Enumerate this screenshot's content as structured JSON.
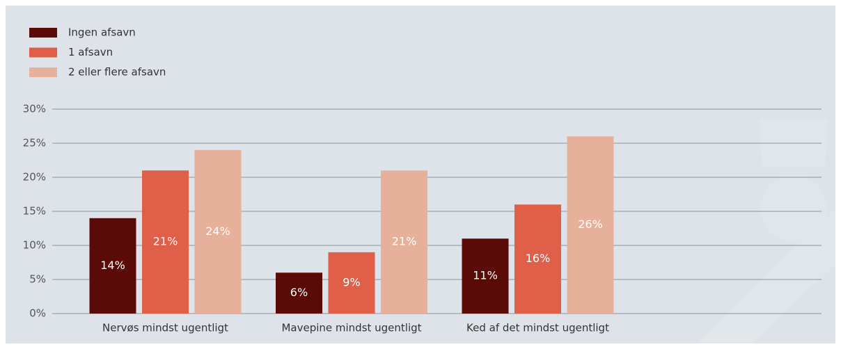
{
  "chart_data": {
    "type": "bar",
    "categories": [
      "Nervøs mindst ugentligt",
      "Mavepine mindst ugentligt",
      "Ked af det mindst ugentligt"
    ],
    "series": [
      {
        "name": "Ingen afsavn",
        "color": "#5a0a07",
        "values": [
          14,
          6,
          11
        ],
        "value_labels": [
          "14%",
          "6%",
          "11%"
        ]
      },
      {
        "name": "1 afsavn",
        "color": "#e05f48",
        "values": [
          21,
          9,
          16
        ],
        "value_labels": [
          "21%",
          "9%",
          "16%"
        ]
      },
      {
        "name": "2 eller flere afsavn",
        "color": "#e6b09b",
        "values": [
          24,
          21,
          26
        ],
        "value_labels": [
          "24%",
          "21%",
          "26%"
        ]
      }
    ],
    "ylim": [
      0,
      30
    ],
    "yticks": [
      {
        "value": 0,
        "label": "0%"
      },
      {
        "value": 5,
        "label": "5%"
      },
      {
        "value": 10,
        "label": "10%"
      },
      {
        "value": 15,
        "label": "15%"
      },
      {
        "value": 20,
        "label": "20%"
      },
      {
        "value": 25,
        "label": "25%"
      },
      {
        "value": 30,
        "label": "30%"
      }
    ],
    "grid": true,
    "legend": "top-left"
  }
}
